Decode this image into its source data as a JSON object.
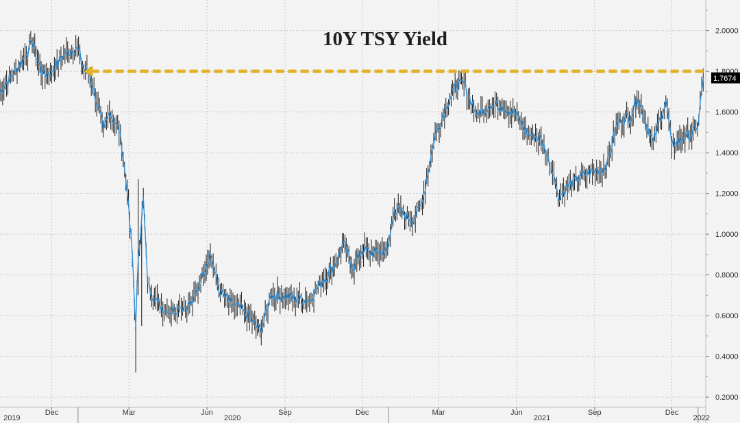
{
  "chart_data": {
    "type": "line",
    "title": "10Y TSY Yield",
    "last_value_label": "1.7674",
    "ylim": [
      0.15,
      2.15
    ],
    "yticks": [
      "0.2000",
      "0.4000",
      "0.6000",
      "0.8000",
      "1.0000",
      "1.2000",
      "1.4000",
      "1.6000",
      "1.8000",
      "2.0000"
    ],
    "ytick_values": [
      0.2,
      0.4,
      0.6,
      0.8,
      1.0,
      1.2,
      1.4,
      1.6,
      1.8,
      2.0
    ],
    "x_month_labels": [
      "Dec",
      "Mar",
      "Jun",
      "Sep",
      "Dec",
      "Mar",
      "Jun",
      "Sep",
      "Dec"
    ],
    "x_month_dates": [
      "2019-12-01",
      "2020-03-01",
      "2020-06-01",
      "2020-09-01",
      "2020-12-01",
      "2021-03-01",
      "2021-06-01",
      "2021-09-01",
      "2021-12-01"
    ],
    "x_year_labels": [
      "2019",
      "2020",
      "2021",
      "2022"
    ],
    "x_year_dates": [
      "2019-10-15",
      "2020-07-01",
      "2021-07-01",
      "2022-01-05"
    ],
    "x_year_separators": [
      "2020-01-01",
      "2021-01-01",
      "2022-01-01"
    ],
    "xlim": [
      "2019-10-01",
      "2022-01-10"
    ],
    "reference_line": {
      "value": 1.8,
      "from": "2020-01-08",
      "to": "2022-01-10",
      "color": "#e3b224",
      "style": "dashed",
      "arrow": "left"
    },
    "series": [
      {
        "color": "#2f8fd6",
        "x": [
          "2019-10-01",
          "2019-10-15",
          "2019-11-01",
          "2019-11-08",
          "2019-11-20",
          "2019-12-01",
          "2019-12-15",
          "2019-12-31",
          "2020-01-08",
          "2020-01-15",
          "2020-01-31",
          "2020-02-07",
          "2020-02-20",
          "2020-02-28",
          "2020-03-05",
          "2020-03-09",
          "2020-03-12",
          "2020-03-18",
          "2020-03-23",
          "2020-03-31",
          "2020-04-15",
          "2020-04-30",
          "2020-05-15",
          "2020-06-05",
          "2020-06-15",
          "2020-06-30",
          "2020-07-15",
          "2020-08-04",
          "2020-08-15",
          "2020-08-31",
          "2020-09-15",
          "2020-09-30",
          "2020-10-15",
          "2020-10-31",
          "2020-11-09",
          "2020-11-20",
          "2020-12-01",
          "2020-12-15",
          "2020-12-31",
          "2021-01-08",
          "2021-01-20",
          "2021-01-31",
          "2021-02-10",
          "2021-02-25",
          "2021-03-05",
          "2021-03-19",
          "2021-03-31",
          "2021-04-15",
          "2021-04-30",
          "2021-05-15",
          "2021-05-31",
          "2021-06-15",
          "2021-06-30",
          "2021-07-15",
          "2021-07-20",
          "2021-07-31",
          "2021-08-15",
          "2021-08-31",
          "2021-09-15",
          "2021-09-28",
          "2021-10-15",
          "2021-10-21",
          "2021-10-31",
          "2021-11-09",
          "2021-11-24",
          "2021-12-01",
          "2021-12-15",
          "2021-12-31",
          "2022-01-07"
        ],
        "y": [
          1.7,
          1.78,
          1.88,
          1.94,
          1.78,
          1.8,
          1.88,
          1.92,
          1.81,
          1.78,
          1.51,
          1.6,
          1.5,
          1.2,
          0.9,
          0.55,
          0.88,
          1.18,
          0.76,
          0.68,
          0.62,
          0.64,
          0.66,
          0.91,
          0.72,
          0.66,
          0.62,
          0.52,
          0.7,
          0.7,
          0.68,
          0.68,
          0.77,
          0.86,
          0.96,
          0.83,
          0.92,
          0.91,
          0.92,
          1.12,
          1.09,
          1.07,
          1.16,
          1.49,
          1.57,
          1.72,
          1.74,
          1.59,
          1.63,
          1.63,
          1.59,
          1.49,
          1.47,
          1.29,
          1.18,
          1.23,
          1.28,
          1.31,
          1.33,
          1.55,
          1.58,
          1.67,
          1.56,
          1.45,
          1.66,
          1.44,
          1.47,
          1.51,
          1.7674
        ]
      }
    ],
    "grid": true,
    "legend": "none"
  }
}
